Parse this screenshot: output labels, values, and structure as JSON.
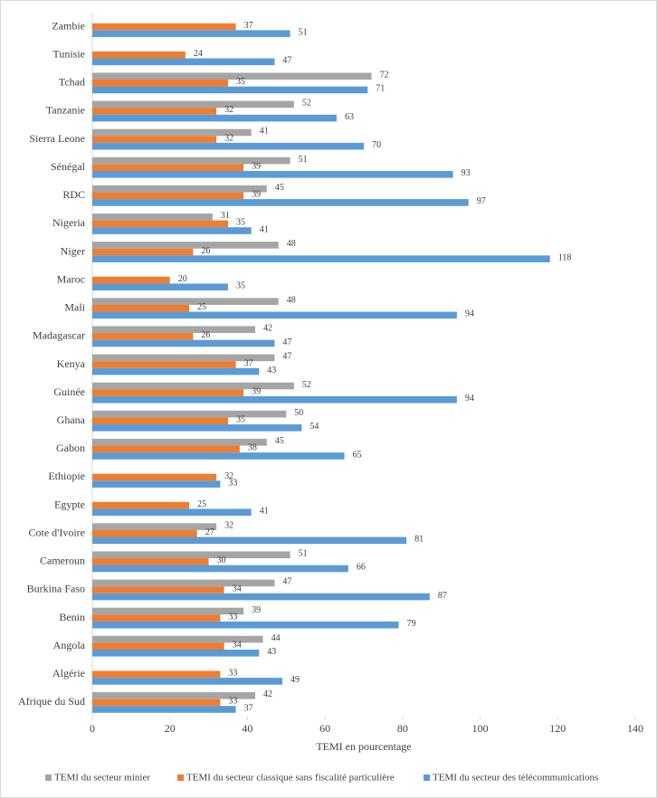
{
  "chart_data": {
    "type": "hbar",
    "xlabel": "TEMI en pourcentage",
    "categories": [
      "Afrique du Sud",
      "Algérie",
      "Angola",
      "Benin",
      "Burkina Faso",
      "Cameroun",
      "Cote d'Ivoire",
      "Egypte",
      "Ethiopie",
      "Gabon",
      "Ghana",
      "Guinée",
      "Kenya",
      "Madagascar",
      "Mali",
      "Maroc",
      "Niger",
      "Nigeria",
      "RDC",
      "Sénégal",
      "Sierra Leone",
      "Tanzanie",
      "Tchad",
      "Tunisie",
      "Zambie"
    ],
    "series": [
      {
        "name": "TEMI du secteur minier",
        "color": "#a5a5a5",
        "values": [
          42,
          null,
          44,
          39,
          47,
          51,
          32,
          null,
          null,
          45,
          50,
          52,
          47,
          42,
          48,
          null,
          48,
          31,
          45,
          51,
          41,
          52,
          72,
          null,
          null
        ]
      },
      {
        "name": "TEMI du secteur classique sans fiscalité particulière",
        "color": "#ed7d31",
        "values": [
          33,
          33,
          34,
          33,
          34,
          30,
          27,
          25,
          32,
          38,
          35,
          39,
          37,
          26,
          25,
          20,
          26,
          35,
          39,
          39,
          32,
          32,
          35,
          24,
          37
        ]
      },
      {
        "name": "TEMI du secteur des télécommunications",
        "color": "#5b9bd5",
        "values": [
          37,
          49,
          43,
          79,
          87,
          66,
          81,
          41,
          33,
          65,
          54,
          94,
          43,
          47,
          94,
          35,
          118,
          41,
          97,
          93,
          70,
          63,
          71,
          47,
          51
        ]
      }
    ],
    "xlim": [
      0,
      140
    ],
    "xticks": [
      0,
      20,
      40,
      60,
      80,
      100,
      120,
      140
    ],
    "legend": "bottom"
  }
}
